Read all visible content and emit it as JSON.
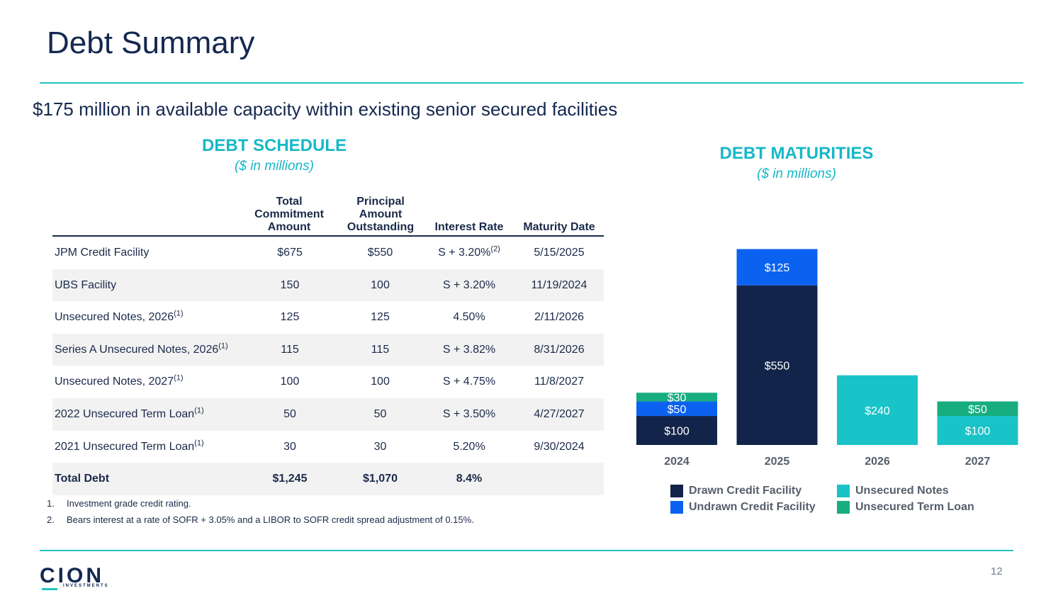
{
  "page": {
    "title": "Debt Summary",
    "subtitle": "$175 million in available capacity within existing senior secured facilities",
    "page_number": "12"
  },
  "schedule": {
    "heading": "DEBT SCHEDULE",
    "units": "($ in millions)",
    "columns": {
      "total_commitment": [
        "Total",
        "Commitment",
        "Amount"
      ],
      "principal": [
        "Principal",
        "Amount",
        "Outstanding"
      ],
      "rate": "Interest Rate",
      "maturity": "Maturity Date"
    },
    "rows": [
      {
        "name": "JPM Credit Facility",
        "sup": "",
        "commitment": "$675",
        "principal": "$550",
        "rate": "S + 3.20%",
        "rate_sup": "(2)",
        "maturity": "5/15/2025"
      },
      {
        "name": "UBS Facility",
        "sup": "",
        "commitment": "150",
        "principal": "100",
        "rate": "S + 3.20%",
        "rate_sup": "",
        "maturity": "11/19/2024"
      },
      {
        "name": "Unsecured Notes, 2026",
        "sup": "(1)",
        "commitment": "125",
        "principal": "125",
        "rate": "4.50%",
        "rate_sup": "",
        "maturity": "2/11/2026"
      },
      {
        "name": "Series A Unsecured Notes, 2026",
        "sup": "(1)",
        "commitment": "115",
        "principal": "115",
        "rate": "S + 3.82%",
        "rate_sup": "",
        "maturity": "8/31/2026"
      },
      {
        "name": "Unsecured Notes, 2027",
        "sup": "(1)",
        "commitment": "100",
        "principal": "100",
        "rate": "S + 4.75%",
        "rate_sup": "",
        "maturity": "11/8/2027"
      },
      {
        "name": "2022 Unsecured Term Loan",
        "sup": "(1)",
        "commitment": "50",
        "principal": "50",
        "rate": "S + 3.50%",
        "rate_sup": "",
        "maturity": "4/27/2027"
      },
      {
        "name": "2021 Unsecured Term Loan",
        "sup": "(1)",
        "commitment": "30",
        "principal": "30",
        "rate": "5.20%",
        "rate_sup": "",
        "maturity": "9/30/2024"
      }
    ],
    "total": {
      "name": "Total Debt",
      "commitment": "$1,245",
      "principal": "$1,070",
      "rate": "8.4%",
      "maturity": ""
    }
  },
  "footnotes": [
    {
      "num": "1.",
      "text": "Investment grade credit rating."
    },
    {
      "num": "2.",
      "text": "Bears interest at a rate of SOFR + 3.05% and a LIBOR to SOFR credit spread adjustment of 0.15%."
    }
  ],
  "maturities": {
    "heading": "DEBT MATURITIES",
    "units": "($ in millions)"
  },
  "chart_data": {
    "type": "bar",
    "stacked": true,
    "categories": [
      "2024",
      "2025",
      "2026",
      "2027"
    ],
    "series": [
      {
        "name": "Drawn Credit Facility",
        "color": "#13244a",
        "values": [
          100,
          550,
          0,
          0
        ],
        "labels": [
          "$100",
          "$550",
          "",
          ""
        ]
      },
      {
        "name": "Unsecured Notes",
        "color": "#19c3c7",
        "values": [
          0,
          0,
          240,
          100
        ],
        "labels": [
          "",
          "",
          "$240",
          "$100"
        ]
      },
      {
        "name": "Undrawn Credit Facility",
        "color": "#0c62f0",
        "values": [
          50,
          125,
          0,
          0
        ],
        "labels": [
          "$50",
          "$125",
          "",
          ""
        ]
      },
      {
        "name": "Unsecured Term Loan",
        "color": "#17ad7e",
        "values": [
          30,
          0,
          0,
          50
        ],
        "labels": [
          "$30",
          "",
          "",
          "$50"
        ]
      }
    ],
    "legend": [
      "Drawn Credit Facility",
      "Undrawn Credit Facility",
      "Unsecured Notes",
      "Unsecured Term Loan"
    ],
    "legend_placement": "bottom",
    "grid": false
  },
  "logo": {
    "word": "CION",
    "sub": "INVESTMENTS"
  }
}
